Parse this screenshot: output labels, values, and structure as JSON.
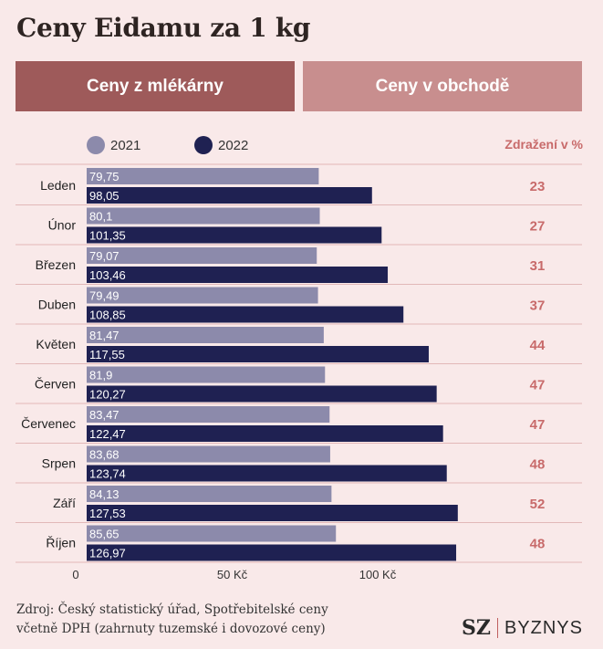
{
  "title": "Ceny Eidamu za 1 kg",
  "tabs": [
    {
      "label": "Ceny z mlékárny",
      "active": true
    },
    {
      "label": "Ceny v obchodě",
      "active": false
    }
  ],
  "increase_header": "Zdražení v %",
  "colors": {
    "series_2021": "#8c8aab",
    "series_2022": "#1f2152",
    "increase_text": "#c86a6a",
    "tab_active": "#9e5a5a",
    "tab_inactive": "#c88e8e",
    "background": "#f9e9e9"
  },
  "chart_data": {
    "type": "bar",
    "orientation": "horizontal",
    "categories": [
      "Leden",
      "Únor",
      "Březen",
      "Duben",
      "Květen",
      "Červen",
      "Červenec",
      "Srpen",
      "Září",
      "Říjen"
    ],
    "series": [
      {
        "name": "2021",
        "values": [
          79.75,
          80.1,
          79.07,
          79.49,
          81.47,
          81.9,
          83.47,
          83.68,
          84.13,
          85.65
        ],
        "labels": [
          "79,75",
          "80,1",
          "79,07",
          "79,49",
          "81,47",
          "81,9",
          "83,47",
          "83,68",
          "84,13",
          "85,65"
        ]
      },
      {
        "name": "2022",
        "values": [
          98.05,
          101.35,
          103.46,
          108.85,
          117.55,
          120.27,
          122.47,
          123.74,
          127.53,
          126.97
        ],
        "labels": [
          "98,05",
          "101,35",
          "103,46",
          "108,85",
          "117,55",
          "120,27",
          "122,47",
          "123,74",
          "127,53",
          "126,97"
        ]
      }
    ],
    "increase_percent": [
      23,
      27,
      31,
      37,
      44,
      47,
      47,
      48,
      52,
      48
    ],
    "xticks": [
      {
        "value": 0,
        "label": "0"
      },
      {
        "value": 50,
        "label": "50 Kč"
      },
      {
        "value": 100,
        "label": "100 Kč"
      }
    ],
    "xlim": [
      0,
      150
    ],
    "legend_position": "top-left"
  },
  "source_lines": [
    "Zdroj: Český statistický úřad, Spotřebitelské ceny",
    "včetně DPH (zahrnuty tuzemské i dovozové ceny)"
  ],
  "logo": {
    "brand": "SZ",
    "section": "BYZNYS"
  }
}
